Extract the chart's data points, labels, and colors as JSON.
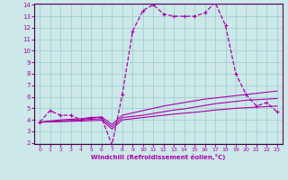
{
  "xlabel": "Windchill (Refroidissement éolien,°C)",
  "bg_color": "#cce8e8",
  "grid_color": "#99cccc",
  "line_color": "#aa00aa",
  "ylim": [
    2,
    14
  ],
  "xlim": [
    -0.5,
    23.5
  ],
  "yticks": [
    2,
    3,
    4,
    5,
    6,
    7,
    8,
    9,
    10,
    11,
    12,
    13,
    14
  ],
  "xticks": [
    0,
    1,
    2,
    3,
    4,
    5,
    6,
    7,
    8,
    9,
    10,
    11,
    12,
    13,
    14,
    15,
    16,
    17,
    18,
    19,
    20,
    21,
    22,
    23
  ],
  "main_x": [
    0,
    1,
    2,
    3,
    4,
    5,
    6,
    7,
    8,
    9,
    10,
    11,
    12,
    13,
    14,
    15,
    16,
    17,
    18,
    19,
    20,
    21,
    22,
    23
  ],
  "main_y": [
    3.8,
    4.8,
    4.4,
    4.4,
    4.0,
    4.2,
    4.2,
    1.8,
    6.2,
    11.7,
    13.5,
    14.0,
    13.2,
    13.0,
    13.0,
    13.0,
    13.3,
    14.2,
    12.2,
    8.0,
    6.2,
    5.2,
    5.5,
    4.7
  ],
  "lower1_x": [
    0,
    1,
    2,
    3,
    4,
    5,
    6,
    7,
    8,
    9,
    10,
    11,
    12,
    13,
    14,
    15,
    16,
    17,
    18,
    19,
    20,
    21,
    22,
    23
  ],
  "lower1_y": [
    3.8,
    3.9,
    4.0,
    4.05,
    4.1,
    4.2,
    4.25,
    3.6,
    4.4,
    4.6,
    4.8,
    5.0,
    5.2,
    5.35,
    5.5,
    5.65,
    5.8,
    5.9,
    6.0,
    6.1,
    6.2,
    6.3,
    6.4,
    6.5
  ],
  "lower2_x": [
    0,
    1,
    2,
    3,
    4,
    5,
    6,
    7,
    8,
    9,
    10,
    11,
    12,
    13,
    14,
    15,
    16,
    17,
    18,
    19,
    20,
    21,
    22,
    23
  ],
  "lower2_y": [
    3.8,
    3.85,
    3.9,
    3.95,
    4.0,
    4.05,
    4.1,
    3.4,
    4.2,
    4.3,
    4.4,
    4.55,
    4.7,
    4.85,
    4.95,
    5.1,
    5.25,
    5.4,
    5.5,
    5.6,
    5.7,
    5.75,
    5.8,
    5.85
  ],
  "lower3_x": [
    0,
    1,
    2,
    3,
    4,
    5,
    6,
    7,
    8,
    9,
    10,
    11,
    12,
    13,
    14,
    15,
    16,
    17,
    18,
    19,
    20,
    21,
    22,
    23
  ],
  "lower3_y": [
    3.8,
    3.82,
    3.84,
    3.87,
    3.9,
    3.93,
    3.96,
    3.2,
    4.0,
    4.1,
    4.2,
    4.3,
    4.4,
    4.5,
    4.58,
    4.65,
    4.75,
    4.85,
    4.92,
    5.0,
    5.05,
    5.1,
    5.15,
    5.2
  ]
}
